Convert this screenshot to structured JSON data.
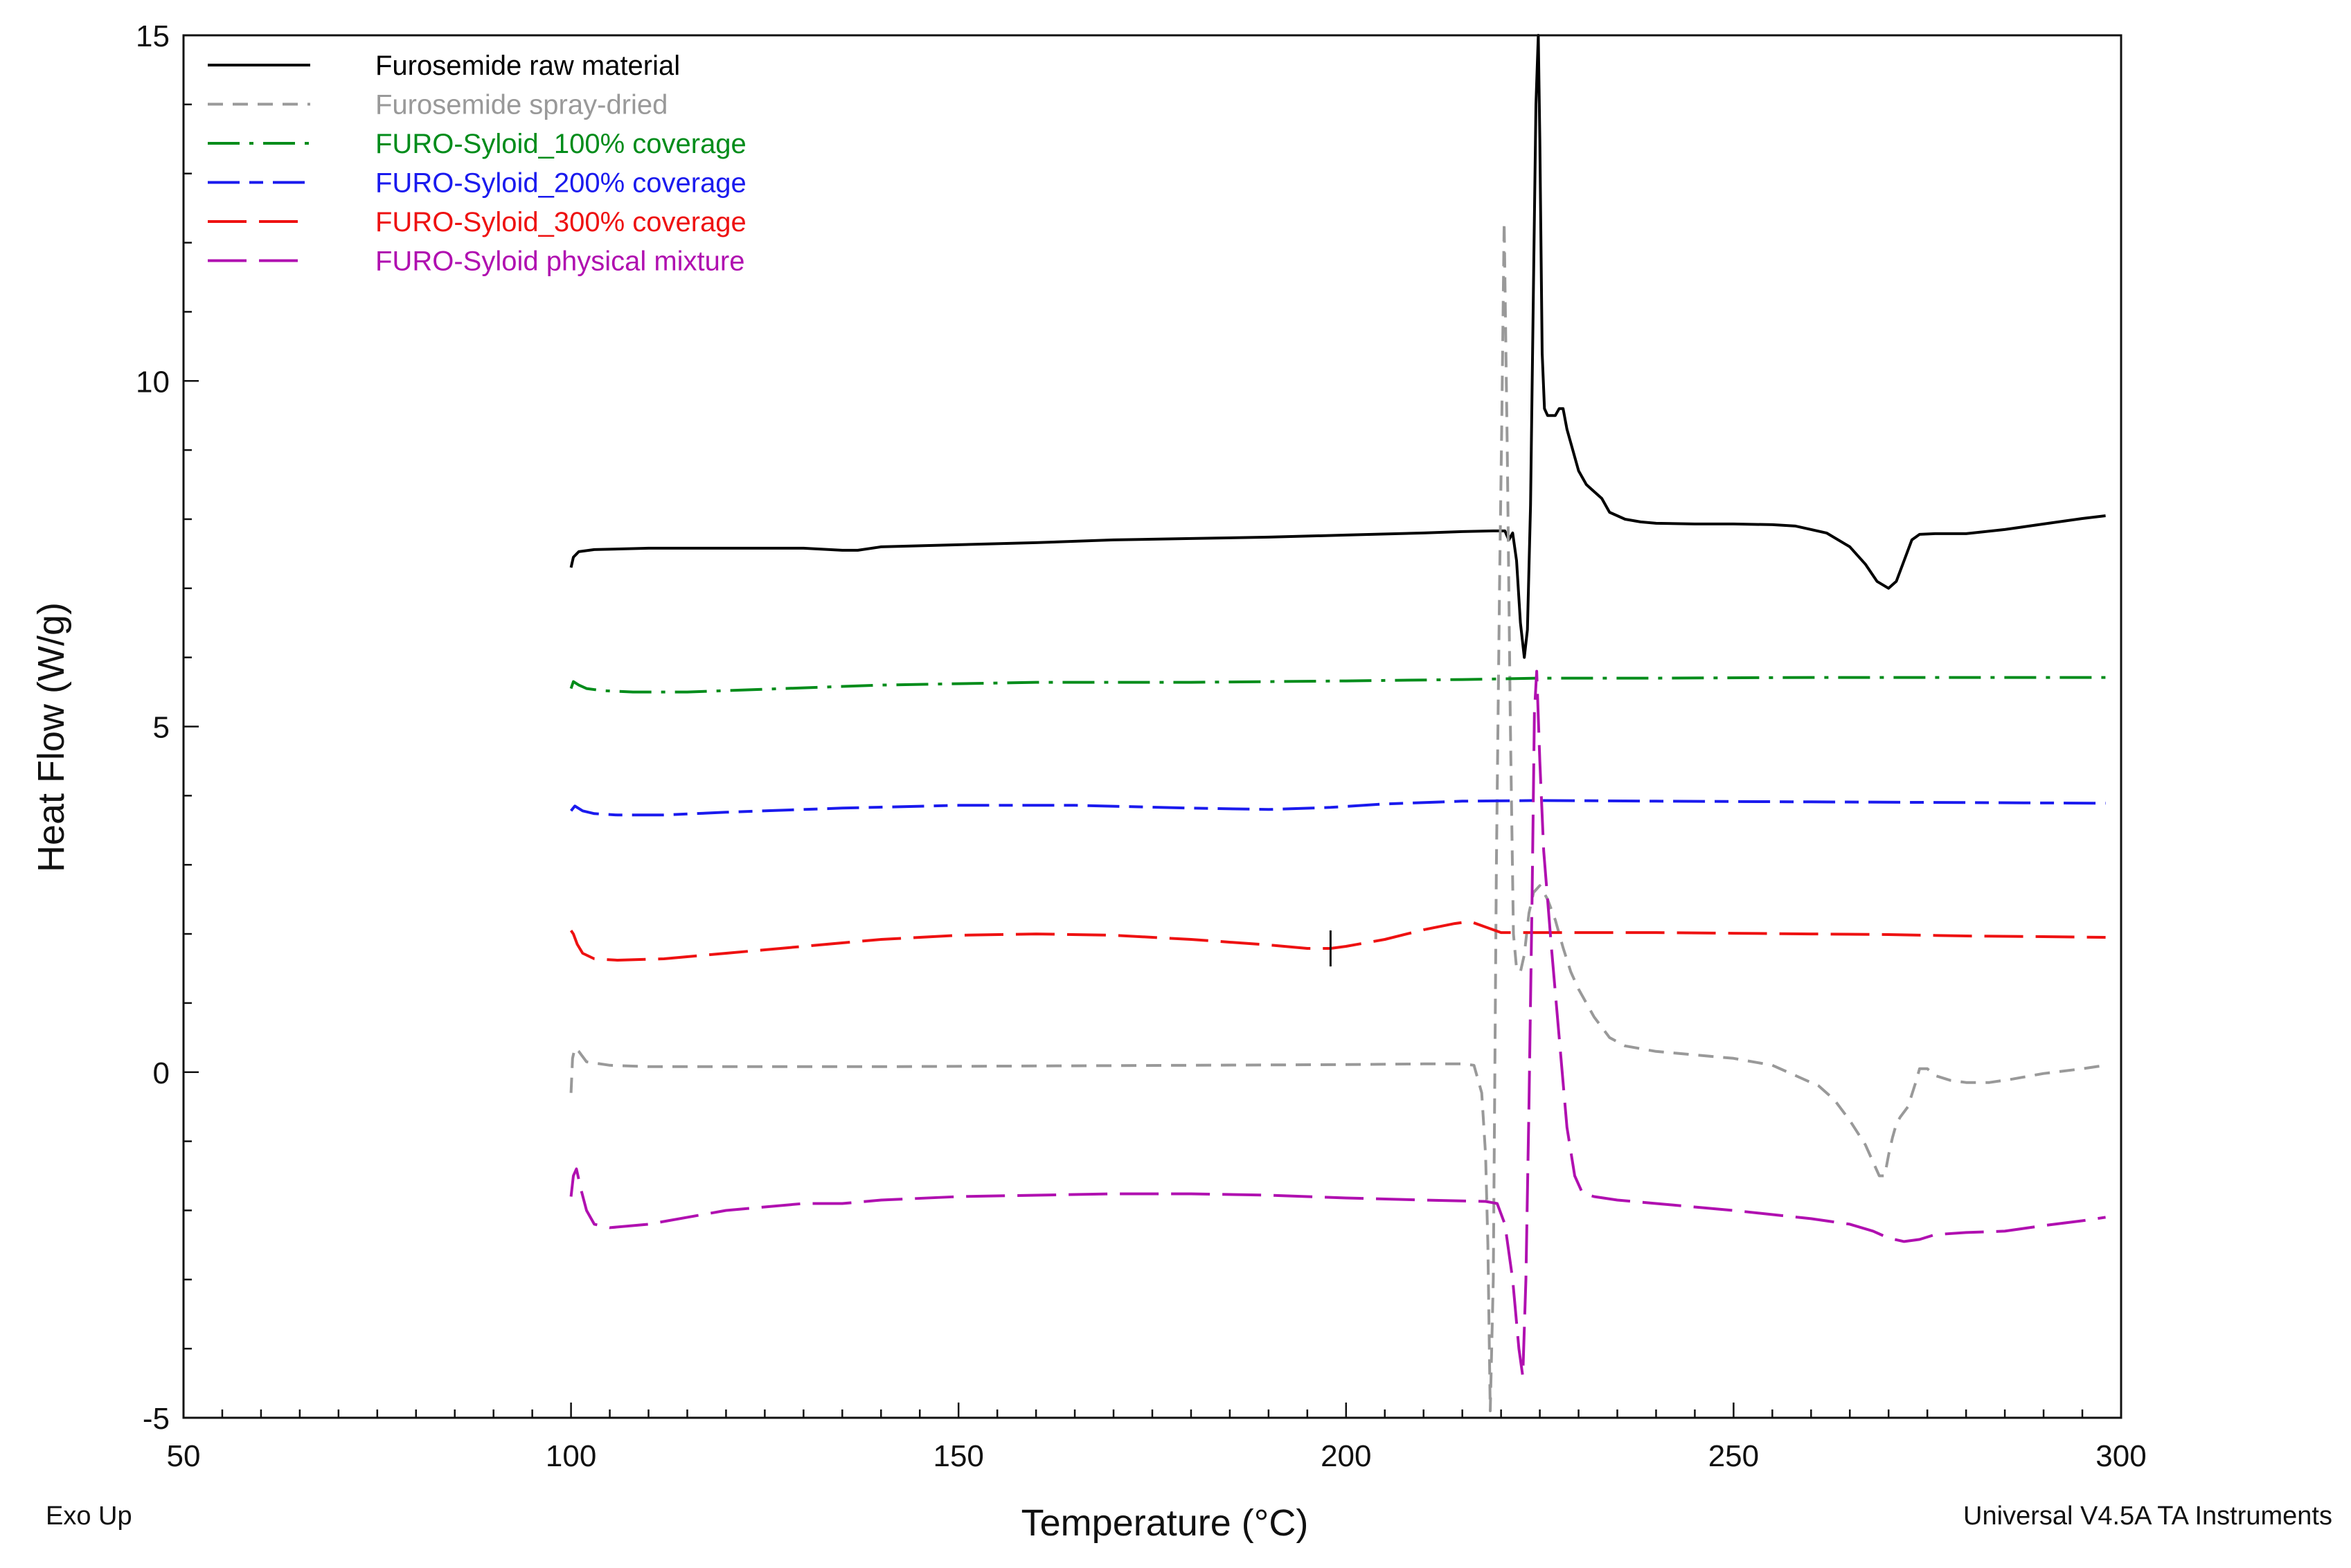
{
  "chart_data": {
    "type": "line",
    "title": "",
    "xlabel": "Temperature (°C)",
    "ylabel": "Heat Flow (W/g)",
    "xlim": [
      50,
      300
    ],
    "ylim": [
      -5,
      15
    ],
    "xticks": [
      50,
      100,
      150,
      200,
      250,
      300
    ],
    "yticks": [
      -5,
      0,
      5,
      10,
      15
    ],
    "grid": false,
    "legend_position": "top-left",
    "corner_left": "Exo Up",
    "corner_right": "Universal V4.5A TA Instruments",
    "series": [
      {
        "name": "Furosemide raw material",
        "color": "#000000",
        "dash": "solid",
        "x": [
          100,
          100.3,
          101,
          103,
          110,
          120,
          130,
          135,
          137,
          140,
          150,
          160,
          170,
          180,
          190,
          200,
          210,
          215,
          219,
          220.5,
          221,
          221.5,
          222,
          222.5,
          223,
          223.4,
          223.8,
          224.2,
          224.5,
          224.8,
          225,
          225.3,
          225.6,
          226,
          226.5,
          227,
          227.5,
          228,
          228.5,
          229,
          230,
          231,
          232,
          233,
          234,
          236,
          238,
          240,
          245,
          250,
          255,
          258,
          262,
          265,
          267,
          268.5,
          270,
          271,
          272,
          273,
          274,
          276,
          280,
          285,
          290,
          295,
          298
        ],
        "y": [
          7.3,
          7.45,
          7.53,
          7.56,
          7.58,
          7.58,
          7.58,
          7.55,
          7.55,
          7.6,
          7.63,
          7.66,
          7.7,
          7.72,
          7.74,
          7.77,
          7.8,
          7.82,
          7.83,
          7.83,
          7.7,
          7.8,
          7.4,
          6.5,
          6.0,
          6.4,
          8.2,
          11.5,
          14.0,
          15.0,
          13.5,
          10.4,
          9.6,
          9.5,
          9.5,
          9.5,
          9.6,
          9.6,
          9.3,
          9.1,
          8.7,
          8.5,
          8.4,
          8.3,
          8.1,
          8.0,
          7.96,
          7.94,
          7.93,
          7.93,
          7.92,
          7.9,
          7.8,
          7.6,
          7.35,
          7.1,
          7.0,
          7.1,
          7.4,
          7.7,
          7.78,
          7.79,
          7.79,
          7.85,
          7.93,
          8.01,
          8.05
        ]
      },
      {
        "name": "Furosemide spray-dried",
        "color": "#999999",
        "dash": "short-dash",
        "x": [
          100,
          100.2,
          100.5,
          101,
          102,
          105,
          110,
          120,
          140,
          160,
          180,
          200,
          210,
          215,
          216.5,
          217.5,
          218,
          218.3,
          218.6,
          219,
          219.4,
          219.8,
          220.1,
          220.4,
          220.8,
          221.2,
          221.6,
          222,
          222.5,
          223,
          223.6,
          224.2,
          225,
          226,
          227,
          228,
          229,
          230,
          232,
          234,
          236,
          240,
          245,
          250,
          255,
          258,
          261,
          263,
          265,
          267,
          268,
          268.8,
          269.5,
          270,
          270.5,
          271,
          271.5,
          272.5,
          273.5,
          274,
          275,
          276,
          278,
          280,
          283,
          286,
          290,
          295,
          298
        ],
        "y": [
          -0.3,
          0.2,
          0.35,
          0.3,
          0.15,
          0.1,
          0.08,
          0.08,
          0.08,
          0.09,
          0.1,
          0.11,
          0.12,
          0.12,
          0.1,
          -0.3,
          -1.2,
          -2.5,
          -4.9,
          -3.0,
          3.0,
          7.0,
          9.5,
          12.3,
          9.0,
          5.0,
          2.0,
          1.5,
          1.45,
          1.7,
          2.3,
          2.6,
          2.7,
          2.5,
          2.2,
          1.8,
          1.45,
          1.2,
          0.8,
          0.5,
          0.38,
          0.3,
          0.25,
          0.2,
          0.1,
          -0.05,
          -0.2,
          -0.4,
          -0.7,
          -1.05,
          -1.3,
          -1.5,
          -1.5,
          -1.2,
          -0.95,
          -0.75,
          -0.65,
          -0.5,
          -0.15,
          0.05,
          0.05,
          -0.05,
          -0.12,
          -0.15,
          -0.15,
          -0.1,
          -0.02,
          0.05,
          0.1
        ]
      },
      {
        "name": "FURO-Syloid_100% coverage",
        "color": "#008c1a",
        "dash": "dash-dot",
        "x": [
          100,
          100.3,
          101,
          102,
          104,
          108,
          115,
          125,
          140,
          160,
          180,
          200,
          215,
          225,
          240,
          260,
          280,
          298
        ],
        "y": [
          5.55,
          5.65,
          5.6,
          5.55,
          5.52,
          5.5,
          5.5,
          5.54,
          5.6,
          5.64,
          5.64,
          5.66,
          5.68,
          5.7,
          5.7,
          5.71,
          5.71,
          5.71
        ]
      },
      {
        "name": "FURO-Syloid_200% coverage",
        "color": "#1a1aee",
        "dash": "long-dash-short-dash",
        "x": [
          100,
          100.5,
          101.5,
          103,
          106,
          112,
          120,
          135,
          150,
          165,
          180,
          190,
          198,
          205,
          215,
          225,
          240,
          260,
          280,
          298
        ],
        "y": [
          3.78,
          3.85,
          3.78,
          3.74,
          3.72,
          3.72,
          3.76,
          3.82,
          3.86,
          3.86,
          3.82,
          3.8,
          3.83,
          3.88,
          3.92,
          3.93,
          3.92,
          3.91,
          3.9,
          3.89
        ]
      },
      {
        "name": "FURO-Syloid_300% coverage",
        "color": "#ee1111",
        "dash": "long-dash",
        "x": [
          100,
          100.3,
          100.8,
          101.5,
          103,
          106,
          112,
          120,
          130,
          140,
          150,
          160,
          170,
          180,
          190,
          195,
          198,
          200,
          205,
          210,
          214,
          216,
          218,
          220,
          225,
          230,
          240,
          250,
          260,
          270,
          280,
          290,
          298
        ],
        "y": [
          2.05,
          2.0,
          1.85,
          1.72,
          1.64,
          1.62,
          1.64,
          1.72,
          1.82,
          1.92,
          1.98,
          2.0,
          1.98,
          1.92,
          1.84,
          1.79,
          1.79,
          1.82,
          1.92,
          2.06,
          2.15,
          2.18,
          2.1,
          2.02,
          2.02,
          2.02,
          2.02,
          2.01,
          2.0,
          1.99,
          1.97,
          1.96,
          1.95
        ]
      },
      {
        "name": "FURO-Syloid physical mixture",
        "color": "#b010b0",
        "dash": "long-dash",
        "x": [
          100,
          100.3,
          100.7,
          101.3,
          102,
          103,
          105,
          110,
          120,
          130,
          135,
          140,
          150,
          160,
          170,
          180,
          190,
          200,
          210,
          218,
          219.5,
          220.5,
          221.5,
          222.3,
          222.8,
          223.2,
          223.6,
          224,
          224.3,
          224.6,
          225,
          225.5,
          226,
          226.5,
          227.5,
          228.5,
          229.5,
          230.5,
          232,
          235,
          240,
          250,
          260,
          265,
          268,
          270,
          272,
          274,
          276,
          280,
          285,
          290,
          295,
          298
        ],
        "y": [
          -1.8,
          -1.5,
          -1.4,
          -1.7,
          -2.0,
          -2.2,
          -2.25,
          -2.2,
          -2.0,
          -1.9,
          -1.9,
          -1.85,
          -1.8,
          -1.78,
          -1.76,
          -1.76,
          -1.78,
          -1.82,
          -1.85,
          -1.87,
          -1.9,
          -2.2,
          -3.0,
          -4.0,
          -4.4,
          -3.0,
          -0.5,
          2.5,
          5.2,
          5.8,
          4.5,
          3.2,
          2.5,
          1.8,
          0.5,
          -0.8,
          -1.5,
          -1.75,
          -1.8,
          -1.85,
          -1.9,
          -2.0,
          -2.12,
          -2.2,
          -2.3,
          -2.4,
          -2.45,
          -2.42,
          -2.35,
          -2.32,
          -2.3,
          -2.22,
          -2.15,
          -2.1
        ]
      }
    ]
  }
}
